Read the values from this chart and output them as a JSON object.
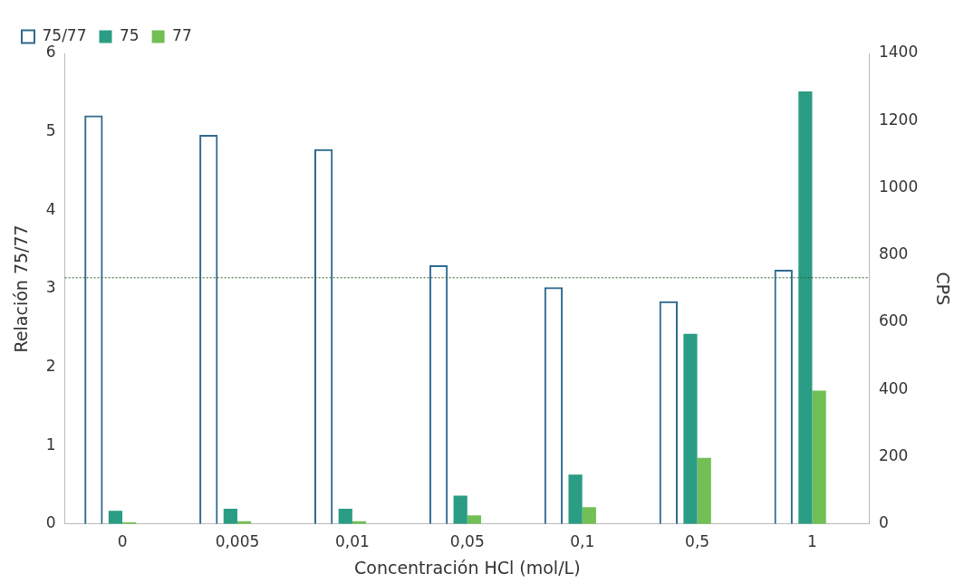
{
  "chart_data": {
    "type": "bar",
    "xlabel": "Concentración HCl (mol/L)",
    "ylabel": "Relación 75/77",
    "y2label": "CPS",
    "categories": [
      "0",
      "0,005",
      "0,01",
      "0,05",
      "0,1",
      "0,5",
      "1"
    ],
    "series": [
      {
        "name": "75/77",
        "color": "#2e6a8e",
        "axis": "y",
        "values": [
          5.21,
          4.96,
          4.78,
          3.3,
          3.02,
          2.84,
          3.24
        ]
      },
      {
        "name": "75",
        "color": "#2a9d84",
        "axis": "y2",
        "values": [
          39,
          45,
          45,
          84,
          147,
          566,
          1287
        ]
      },
      {
        "name": "77",
        "color": "#72bf55",
        "axis": "y2",
        "values": [
          5,
          8,
          8,
          26,
          50,
          197,
          397
        ]
      }
    ],
    "ylim": [
      0,
      6
    ],
    "yticks": [
      0,
      1,
      2,
      3,
      4,
      5,
      6
    ],
    "y2lim": [
      0,
      1400
    ],
    "y2ticks": [
      0,
      200,
      400,
      600,
      800,
      1000,
      1200,
      1400
    ],
    "ref_lines": [
      {
        "axis": "y",
        "value": 3.14,
        "color": "#2e5e2e",
        "line_style": "dotted"
      }
    ],
    "grid": false,
    "legend": "top left"
  }
}
